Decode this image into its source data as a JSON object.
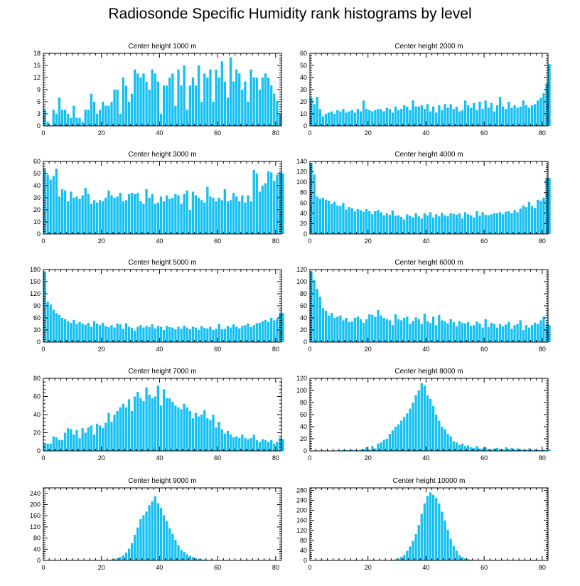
{
  "title": "Radiosonde Specific Humidity rank histograms by level",
  "colors": {
    "bar": "#14bff2",
    "axis": "#000000"
  },
  "chart_data": [
    {
      "type": "bar",
      "title": "Center height 1000 m",
      "xlabel": "",
      "ylabel": "",
      "xlim": [
        0,
        82
      ],
      "ylim": [
        0,
        18
      ],
      "xticks": [
        0,
        20,
        40,
        60,
        80
      ],
      "yticks": [
        0,
        3,
        6,
        9,
        12,
        15,
        18
      ],
      "x_start": 0,
      "values": [
        4,
        1,
        0,
        4,
        3,
        7,
        4,
        4,
        3,
        2,
        5,
        2,
        2,
        1,
        4,
        4,
        8,
        6,
        3,
        4,
        6,
        5,
        5,
        6,
        9,
        9,
        3,
        12,
        10,
        6,
        8,
        14,
        13,
        12,
        13,
        11,
        9,
        14,
        13,
        11,
        3,
        10,
        10,
        12,
        13,
        5,
        14,
        10,
        15,
        4,
        10,
        12,
        10,
        15,
        6,
        13,
        12,
        14,
        6,
        14,
        12,
        16,
        11,
        7,
        17,
        11,
        14,
        13,
        9,
        11,
        6,
        14,
        12,
        12,
        9,
        12,
        13,
        12,
        10,
        8,
        6,
        3
      ]
    },
    {
      "type": "bar",
      "title": "Center height 2000 m",
      "xlabel": "",
      "ylabel": "",
      "xlim": [
        0,
        82
      ],
      "ylim": [
        0,
        60
      ],
      "xticks": [
        0,
        20,
        40,
        60,
        80
      ],
      "yticks": [
        0,
        10,
        20,
        30,
        40,
        50,
        60
      ],
      "x_start": 0,
      "values": [
        23,
        18,
        24,
        14,
        8,
        10,
        11,
        12,
        10,
        13,
        12,
        14,
        11,
        12,
        13,
        11,
        14,
        12,
        21,
        14,
        13,
        12,
        13,
        14,
        14,
        12,
        15,
        14,
        11,
        16,
        13,
        14,
        17,
        16,
        13,
        21,
        16,
        16,
        17,
        14,
        18,
        12,
        16,
        11,
        17,
        13,
        18,
        15,
        18,
        14,
        16,
        12,
        13,
        21,
        17,
        15,
        19,
        13,
        20,
        14,
        21,
        15,
        19,
        12,
        17,
        24,
        16,
        14,
        20,
        15,
        17,
        15,
        16,
        21,
        17,
        15,
        17,
        18,
        21,
        23,
        27,
        35,
        51
      ]
    },
    {
      "type": "bar",
      "title": "Center height 3000 m",
      "xlabel": "",
      "ylabel": "",
      "xlim": [
        0,
        82
      ],
      "ylim": [
        0,
        60
      ],
      "xticks": [
        0,
        20,
        40,
        60,
        80
      ],
      "yticks": [
        0,
        10,
        20,
        30,
        40,
        50,
        60
      ],
      "x_start": 0,
      "values": [
        54,
        49,
        45,
        48,
        54,
        31,
        37,
        36,
        27,
        35,
        30,
        31,
        29,
        32,
        38,
        33,
        25,
        28,
        26,
        28,
        27,
        30,
        36,
        32,
        30,
        31,
        34,
        27,
        28,
        33,
        34,
        33,
        34,
        27,
        25,
        37,
        30,
        33,
        25,
        26,
        31,
        27,
        32,
        29,
        30,
        33,
        32,
        25,
        33,
        36,
        20,
        35,
        32,
        30,
        28,
        26,
        39,
        31,
        30,
        27,
        30,
        28,
        37,
        27,
        28,
        34,
        31,
        27,
        32,
        26,
        32,
        27,
        53,
        50,
        35,
        40,
        42,
        52,
        51,
        44,
        49,
        51,
        50
      ]
    },
    {
      "type": "bar",
      "title": "Center height 4000 m",
      "xlabel": "",
      "ylabel": "",
      "xlim": [
        0,
        82
      ],
      "ylim": [
        0,
        140
      ],
      "xticks": [
        0,
        20,
        40,
        60,
        80
      ],
      "yticks": [
        0,
        20,
        40,
        60,
        80,
        100,
        120,
        140
      ],
      "x_start": 0,
      "values": [
        137,
        115,
        72,
        68,
        70,
        66,
        64,
        58,
        62,
        55,
        54,
        60,
        47,
        52,
        50,
        44,
        48,
        46,
        43,
        48,
        44,
        38,
        44,
        46,
        42,
        36,
        40,
        37,
        45,
        35,
        36,
        33,
        28,
        38,
        35,
        32,
        40,
        34,
        30,
        40,
        36,
        42,
        32,
        38,
        34,
        41,
        36,
        34,
        40,
        39,
        37,
        40,
        30,
        42,
        38,
        36,
        32,
        44,
        35,
        42,
        37,
        36,
        38,
        40,
        40,
        42,
        38,
        43,
        44,
        40,
        46,
        42,
        49,
        55,
        52,
        62,
        54,
        50,
        66,
        64,
        70,
        108,
        108
      ]
    },
    {
      "type": "bar",
      "title": "Center height 5000 m",
      "xlabel": "",
      "ylabel": "",
      "xlim": [
        0,
        82
      ],
      "ylim": [
        0,
        180
      ],
      "xticks": [
        0,
        20,
        40,
        60,
        80
      ],
      "yticks": [
        0,
        30,
        60,
        90,
        120,
        150,
        180
      ],
      "x_start": 0,
      "values": [
        175,
        100,
        93,
        80,
        72,
        68,
        60,
        57,
        52,
        48,
        55,
        45,
        50,
        46,
        43,
        48,
        38,
        52,
        46,
        42,
        48,
        40,
        37,
        42,
        36,
        46,
        44,
        33,
        47,
        38,
        35,
        28,
        38,
        42,
        36,
        40,
        37,
        44,
        34,
        40,
        38,
        30,
        40,
        37,
        36,
        32,
        38,
        33,
        41,
        36,
        32,
        38,
        36,
        30,
        40,
        35,
        34,
        38,
        30,
        33,
        45,
        32,
        33,
        40,
        36,
        44,
        38,
        34,
        40,
        42,
        46,
        37,
        42,
        47,
        48,
        52,
        55,
        50,
        60,
        54,
        58,
        70,
        72
      ]
    },
    {
      "type": "bar",
      "title": "Center height 6000 m",
      "xlabel": "",
      "ylabel": "",
      "xlim": [
        0,
        82
      ],
      "ylim": [
        0,
        120
      ],
      "xticks": [
        0,
        20,
        40,
        60,
        80
      ],
      "yticks": [
        0,
        20,
        40,
        60,
        80,
        100,
        120
      ],
      "x_start": 0,
      "values": [
        117,
        103,
        88,
        75,
        56,
        52,
        44,
        48,
        40,
        42,
        44,
        36,
        40,
        33,
        34,
        40,
        42,
        38,
        32,
        38,
        46,
        45,
        42,
        53,
        44,
        40,
        38,
        36,
        28,
        46,
        38,
        36,
        40,
        42,
        30,
        35,
        41,
        38,
        30,
        47,
        35,
        32,
        42,
        28,
        45,
        36,
        34,
        31,
        38,
        33,
        26,
        35,
        32,
        31,
        33,
        27,
        28,
        34,
        31,
        24,
        38,
        25,
        32,
        30,
        24,
        30,
        26,
        29,
        33,
        22,
        28,
        30,
        36,
        20,
        28,
        24,
        28,
        32,
        30,
        36,
        42,
        30,
        28
      ]
    },
    {
      "type": "bar",
      "title": "Center height 7000 m",
      "xlabel": "",
      "ylabel": "",
      "xlim": [
        0,
        82
      ],
      "ylim": [
        0,
        80
      ],
      "xticks": [
        0,
        20,
        40,
        60,
        80
      ],
      "yticks": [
        0,
        20,
        40,
        60,
        80
      ],
      "x_start": 0,
      "values": [
        8,
        8,
        8,
        16,
        15,
        12,
        12,
        20,
        25,
        24,
        18,
        23,
        14,
        25,
        20,
        26,
        28,
        18,
        30,
        28,
        25,
        31,
        42,
        32,
        40,
        44,
        48,
        52,
        48,
        57,
        44,
        60,
        65,
        58,
        55,
        70,
        62,
        58,
        60,
        72,
        50,
        68,
        58,
        58,
        54,
        50,
        48,
        46,
        52,
        48,
        44,
        36,
        42,
        38,
        40,
        45,
        36,
        34,
        40,
        26,
        32,
        24,
        19,
        22,
        18,
        15,
        16,
        14,
        18,
        14,
        13,
        14,
        18,
        12,
        10,
        13,
        12,
        10,
        12,
        8,
        10,
        14,
        13
      ]
    },
    {
      "type": "bar",
      "title": "Center height 8000 m",
      "xlabel": "",
      "ylabel": "",
      "xlim": [
        0,
        82
      ],
      "ylim": [
        0,
        120
      ],
      "xticks": [
        0,
        20,
        40,
        60,
        80
      ],
      "yticks": [
        0,
        20,
        40,
        60,
        80,
        100,
        120
      ],
      "x_start": 0,
      "values": [
        0,
        0,
        0,
        0,
        0,
        0,
        0,
        0,
        0,
        0,
        1,
        2,
        1,
        1,
        2,
        1,
        1,
        2,
        3,
        6,
        2,
        8,
        4,
        12,
        14,
        18,
        20,
        28,
        34,
        40,
        44,
        50,
        56,
        62,
        70,
        80,
        92,
        100,
        112,
        108,
        92,
        86,
        74,
        60,
        50,
        40,
        36,
        28,
        24,
        16,
        14,
        10,
        12,
        8,
        9,
        6,
        5,
        8,
        4,
        4,
        6,
        3,
        2,
        4,
        5,
        3,
        2,
        6,
        3,
        5,
        2,
        4,
        3,
        2,
        2,
        4,
        1,
        3,
        2,
        1,
        2,
        1,
        2
      ]
    },
    {
      "type": "bar",
      "title": "Center height 9000 m",
      "xlabel": "",
      "ylabel": "",
      "xlim": [
        0,
        82
      ],
      "ylim": [
        0,
        260
      ],
      "xticks": [
        0,
        20,
        40,
        60,
        80
      ],
      "yticks": [
        0,
        40,
        80,
        120,
        160,
        200,
        240
      ],
      "x_start": 0,
      "values": [
        0,
        0,
        0,
        0,
        0,
        0,
        0,
        0,
        0,
        0,
        0,
        0,
        0,
        0,
        0,
        0,
        0,
        0,
        0,
        0,
        1,
        1,
        2,
        3,
        5,
        8,
        12,
        18,
        28,
        42,
        62,
        92,
        118,
        148,
        162,
        175,
        198,
        212,
        230,
        205,
        188,
        162,
        140,
        115,
        95,
        74,
        55,
        38,
        30,
        22,
        16,
        12,
        9,
        6,
        4,
        3,
        2,
        2,
        1,
        1,
        1,
        0,
        0,
        0,
        0,
        0,
        0,
        0,
        0,
        0,
        0,
        0,
        0,
        0,
        0,
        0,
        0,
        0,
        0,
        0,
        0,
        0,
        0
      ]
    },
    {
      "type": "bar",
      "title": "Center height 10000 m",
      "xlabel": "",
      "ylabel": "",
      "xlim": [
        0,
        82
      ],
      "ylim": [
        0,
        290
      ],
      "xticks": [
        0,
        20,
        40,
        60,
        80
      ],
      "yticks": [
        0,
        40,
        80,
        120,
        160,
        200,
        240,
        280
      ],
      "x_start": 0,
      "values": [
        0,
        0,
        0,
        0,
        0,
        0,
        0,
        0,
        0,
        0,
        0,
        0,
        0,
        0,
        0,
        0,
        0,
        0,
        0,
        0,
        0,
        0,
        0,
        0,
        0,
        0,
        1,
        1,
        2,
        4,
        8,
        14,
        22,
        38,
        56,
        78,
        105,
        142,
        186,
        228,
        258,
        272,
        262,
        250,
        228,
        195,
        160,
        122,
        86,
        58,
        38,
        22,
        14,
        8,
        5,
        3,
        2,
        1,
        1,
        0,
        0,
        0,
        0,
        0,
        0,
        0,
        0,
        0,
        0,
        0,
        0,
        0,
        0,
        0,
        0,
        0,
        0,
        0,
        0,
        0,
        0,
        0,
        0
      ]
    }
  ]
}
